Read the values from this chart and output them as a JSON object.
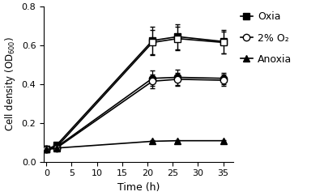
{
  "series": [
    {
      "label": "Oxia_filled",
      "x": [
        0,
        2,
        21,
        26,
        35
      ],
      "y": [
        0.063,
        0.085,
        0.625,
        0.645,
        0.62
      ],
      "yerr": [
        0.005,
        0.005,
        0.07,
        0.065,
        0.06
      ],
      "marker": "s",
      "fillstyle": "full",
      "linestyle": "-"
    },
    {
      "label": "Oxia_open",
      "x": [
        0,
        2,
        21,
        26,
        35
      ],
      "y": [
        0.063,
        0.075,
        0.615,
        0.635,
        0.615
      ],
      "yerr": [
        0.005,
        0.005,
        0.065,
        0.06,
        0.055
      ],
      "marker": "s",
      "fillstyle": "none",
      "linestyle": "-"
    },
    {
      "label": "2pct_filled",
      "x": [
        0,
        2,
        21,
        26,
        35
      ],
      "y": [
        0.063,
        0.075,
        0.43,
        0.435,
        0.43
      ],
      "yerr": [
        0.005,
        0.005,
        0.04,
        0.04,
        0.03
      ],
      "marker": "o",
      "fillstyle": "full",
      "linestyle": "-"
    },
    {
      "label": "2pct_open",
      "x": [
        0,
        2,
        21,
        26,
        35
      ],
      "y": [
        0.063,
        0.07,
        0.415,
        0.425,
        0.42
      ],
      "yerr": [
        0.005,
        0.005,
        0.035,
        0.035,
        0.03
      ],
      "marker": "o",
      "fillstyle": "none",
      "linestyle": "-"
    },
    {
      "label": "Anoxia",
      "x": [
        0,
        2,
        21,
        26,
        35
      ],
      "y": [
        0.063,
        0.07,
        0.105,
        0.108,
        0.108
      ],
      "yerr": [
        0.003,
        0.003,
        0.005,
        0.005,
        0.005
      ],
      "marker": "^",
      "fillstyle": "full",
      "linestyle": "-"
    }
  ],
  "legend_entries": [
    {
      "label": "Oxia",
      "marker": "s",
      "fillstyle": "full"
    },
    {
      "label": "2% O₂",
      "marker": "o",
      "fillstyle": "none"
    },
    {
      "label": "Anoxia",
      "marker": "^",
      "fillstyle": "full"
    }
  ],
  "xlabel": "Time (h)",
  "xlim": [
    -0.5,
    37
  ],
  "ylim": [
    0,
    0.8
  ],
  "xticks": [
    0,
    5,
    10,
    15,
    20,
    25,
    30,
    35
  ],
  "yticks": [
    0.0,
    0.2,
    0.4,
    0.6,
    0.8
  ],
  "background_color": "white",
  "linewidth": 1.2,
  "markersize": 6,
  "capsize": 2.5,
  "elinewidth": 0.9
}
